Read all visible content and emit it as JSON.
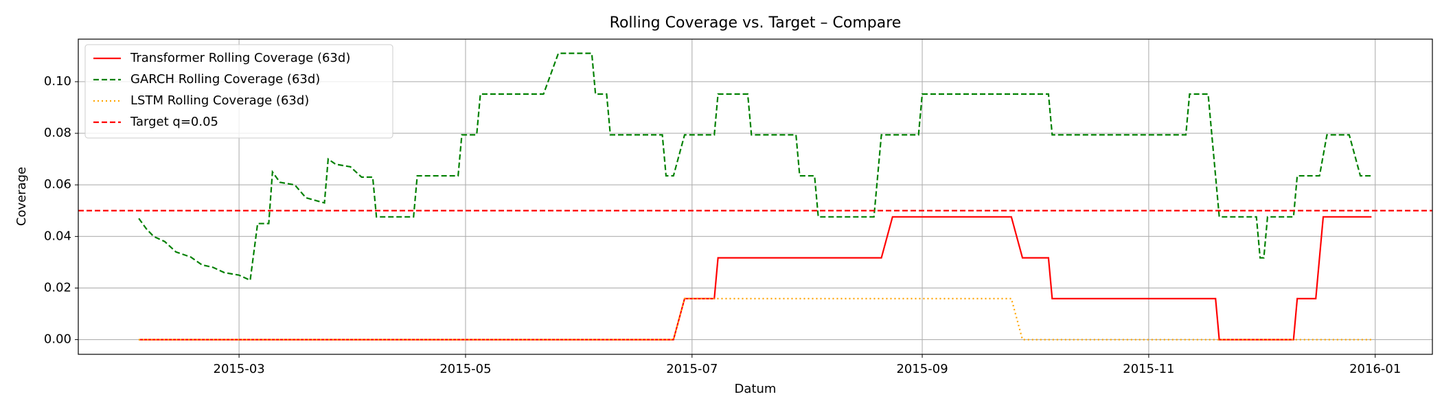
{
  "chart_data": {
    "type": "line",
    "title": "Rolling Coverage vs. Target – Compare",
    "xlabel": "Datum",
    "ylabel": "Coverage",
    "xlim": [
      16451.7,
      16816.4
    ],
    "xticks": [
      {
        "value": 16495,
        "label": "2015-03"
      },
      {
        "value": 16556,
        "label": "2015-05"
      },
      {
        "value": 16617,
        "label": "2015-07"
      },
      {
        "value": 16679,
        "label": "2015-09"
      },
      {
        "value": 16740,
        "label": "2015-11"
      },
      {
        "value": 16801,
        "label": "2016-01"
      }
    ],
    "ylim": [
      -0.0057,
      0.1165
    ],
    "yticks": [
      {
        "value": 0,
        "label": "0.00"
      },
      {
        "value": 0.02,
        "label": "0.02"
      },
      {
        "value": 0.04,
        "label": "0.04"
      },
      {
        "value": 0.06,
        "label": "0.06"
      },
      {
        "value": 0.08,
        "label": "0.08"
      },
      {
        "value": 0.1,
        "label": "0.10"
      }
    ],
    "grid": true,
    "legend": "upper left",
    "series": [
      {
        "name": "Transformer Rolling Coverage (63d)",
        "color": "#ff0000",
        "style": "solid",
        "x": [
          16468,
          16612,
          16615,
          16623,
          16624,
          16668,
          16671,
          16703,
          16706,
          16713,
          16714,
          16758,
          16759,
          16779,
          16780,
          16785,
          16787,
          16800
        ],
        "values": [
          0,
          0,
          0.0159,
          0.0159,
          0.0317,
          0.0317,
          0.0476,
          0.0476,
          0.0317,
          0.0317,
          0.0159,
          0.0159,
          0,
          0,
          0.0159,
          0.0159,
          0.0476,
          0.0476
        ]
      },
      {
        "name": "GARCH Rolling Coverage (63d)",
        "color": "#008000",
        "style": "dashed",
        "x": [
          16468,
          16470,
          16472,
          16475,
          16478,
          16482,
          16485,
          16488,
          16491,
          16495,
          16498,
          16500,
          16503,
          16504,
          16506,
          16510,
          16513,
          16518,
          16519,
          16521,
          16525,
          16528,
          16531,
          16532,
          16542,
          16543,
          16554,
          16555,
          16559,
          16560,
          16577,
          16581,
          16590,
          16591,
          16594,
          16595,
          16609,
          16610,
          16612,
          16615,
          16623,
          16624,
          16632,
          16633,
          16645,
          16646,
          16650,
          16651,
          16666,
          16668,
          16678,
          16679,
          16713,
          16714,
          16750,
          16751,
          16756,
          16759,
          16769,
          16770,
          16771,
          16772,
          16779,
          16780,
          16786,
          16788,
          16794,
          16797,
          16800
        ],
        "values": [
          0.047,
          0.043,
          0.04,
          0.038,
          0.034,
          0.032,
          0.029,
          0.028,
          0.026,
          0.025,
          0.023,
          0.045,
          0.045,
          0.065,
          0.061,
          0.06,
          0.055,
          0.053,
          0.07,
          0.068,
          0.067,
          0.063,
          0.063,
          0.0476,
          0.0476,
          0.0635,
          0.0635,
          0.0794,
          0.0794,
          0.0952,
          0.0952,
          0.111,
          0.111,
          0.0952,
          0.0952,
          0.0794,
          0.0794,
          0.0635,
          0.0635,
          0.0794,
          0.0794,
          0.0952,
          0.0952,
          0.0794,
          0.0794,
          0.0635,
          0.0635,
          0.0476,
          0.0476,
          0.0794,
          0.0794,
          0.0952,
          0.0952,
          0.0794,
          0.0794,
          0.0952,
          0.0952,
          0.0476,
          0.0476,
          0.0317,
          0.0317,
          0.0476,
          0.0476,
          0.0635,
          0.0635,
          0.0794,
          0.0794,
          0.0635,
          0.0635
        ]
      },
      {
        "name": "LSTM Rolling Coverage (63d)",
        "color": "#ffa500",
        "style": "dotted",
        "x": [
          16468,
          16612,
          16615,
          16703,
          16706,
          16800
        ],
        "values": [
          0,
          0,
          0.0159,
          0.0159,
          0,
          0
        ]
      }
    ],
    "hline": {
      "name": "Target q=0.05",
      "value": 0.05,
      "color": "#ff0000",
      "style": "dashed"
    }
  }
}
